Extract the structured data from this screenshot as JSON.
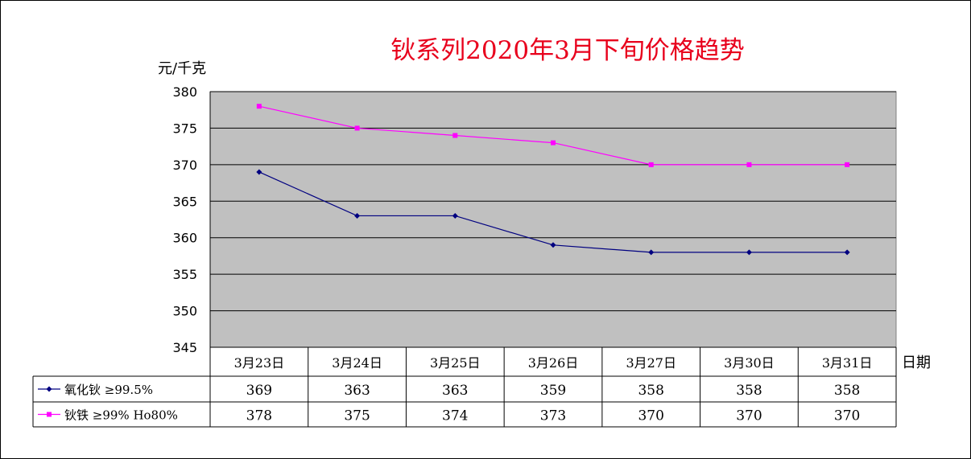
{
  "chart_data": {
    "type": "line",
    "title": "钬系列2020年3月下旬价格趋势",
    "ylabel": "元/千克",
    "xlabel": "日期",
    "categories": [
      "3月23日",
      "3月24日",
      "3月25日",
      "3月26日",
      "3月27日",
      "3月30日",
      "3月31日"
    ],
    "ylim": [
      345,
      380
    ],
    "yticks": [
      380,
      375,
      370,
      365,
      360,
      355,
      350,
      345
    ],
    "grid": true,
    "legend_placement": "data-table-left",
    "series": [
      {
        "name": "氧化钬 ≥99.5%",
        "color": "#000080",
        "marker": "diamond",
        "values": [
          369,
          363,
          363,
          359,
          358,
          358,
          358
        ]
      },
      {
        "name": "钬铁 ≥99% Ho80%",
        "color": "#ff00ff",
        "marker": "square",
        "values": [
          378,
          375,
          374,
          373,
          370,
          370,
          370
        ]
      }
    ],
    "plot_background": "#c0c0c0"
  }
}
